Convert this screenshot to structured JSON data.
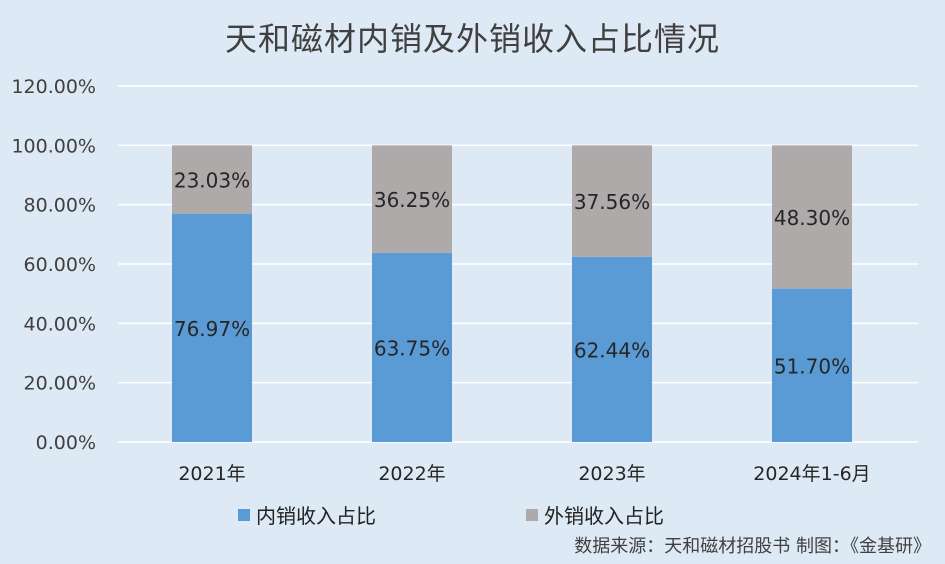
{
  "title": "天和磁材内销及外销收入占比情况",
  "source": "数据来源：天和磁材招股书  制图：《金基研》",
  "colors": {
    "background": "#dde9f4",
    "domestic": "#5b9bd5",
    "export": "#aeaaaa",
    "grid": "#ffffff",
    "axis_text": "#404040"
  },
  "chart_data": {
    "type": "bar",
    "stacked": true,
    "categories": [
      "2021年",
      "2022年",
      "2023年",
      "2024年1-6月"
    ],
    "series": [
      {
        "name": "内销收入占比",
        "values": [
          76.97,
          63.75,
          62.44,
          51.7
        ],
        "labels": [
          "76.97%",
          "63.75%",
          "62.44%",
          "51.70%"
        ]
      },
      {
        "name": "外销收入占比",
        "values": [
          23.03,
          36.25,
          37.56,
          48.3
        ],
        "labels": [
          "23.03%",
          "36.25%",
          "37.56%",
          "48.30%"
        ]
      }
    ],
    "ylim": [
      0,
      120
    ],
    "yticks": [
      "0.00%",
      "20.00%",
      "40.00%",
      "60.00%",
      "80.00%",
      "100.00%",
      "120.00%"
    ],
    "grid": true,
    "legend_position": "bottom"
  }
}
